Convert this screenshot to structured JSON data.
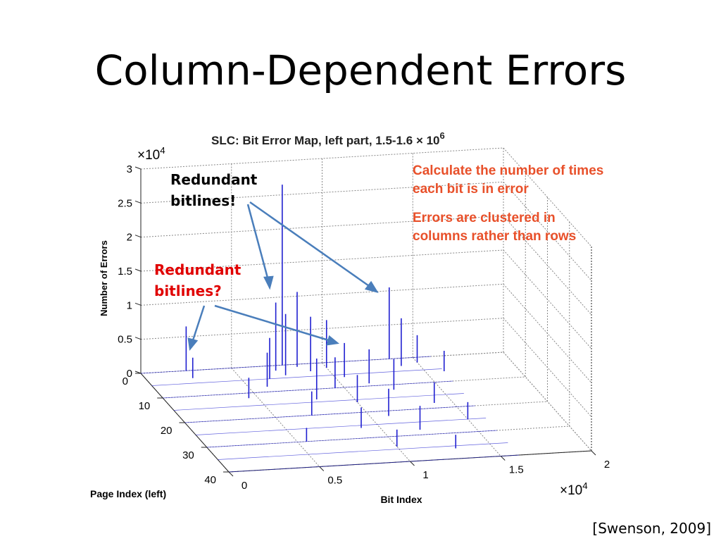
{
  "slide_title": "Column-Dependent Errors",
  "citation": "[Swenson, 2009]",
  "chart_data": {
    "type": "spike3d",
    "title": "SLC: Bit Error Map, left part, 1.5-1.6 × 10",
    "title_exponent": "6",
    "zlabel": "Number of Errors",
    "xlabel": "Bit Index",
    "ylabel": "Page Index (left)",
    "z_multiplier": "×10",
    "z_multiplier_exponent": "4",
    "x_multiplier": "×10",
    "x_multiplier_exponent": "4",
    "xlim": [
      0,
      2
    ],
    "xticks": [
      0,
      0.5,
      1,
      1.5,
      2
    ],
    "ylim": [
      0,
      40
    ],
    "yticks": [
      0,
      10,
      20,
      30,
      40
    ],
    "zlim": [
      0,
      3
    ],
    "zticks": [
      0,
      0.5,
      1,
      1.5,
      2,
      2.5,
      3
    ],
    "color": "#1f1fd0",
    "grid": true,
    "spikes": {
      "bit": [
        0.25,
        0.25,
        0.78,
        0.72,
        0.75,
        0.85,
        0.9,
        1.0,
        1.05,
        1.37,
        1.4,
        1.5,
        0.6,
        0.95,
        1.15,
        0.8,
        1.0,
        1.25,
        0.7,
        1.1,
        1.4,
        0.9,
        1.2,
        1.5,
        0.55,
        1.0,
        1.3,
        0.65,
        1.6,
        0.45
      ],
      "page": [
        0,
        3,
        0,
        2,
        4,
        1,
        3,
        2,
        6,
        0,
        3,
        2,
        8,
        10,
        9,
        14,
        16,
        12,
        20,
        22,
        18,
        26,
        28,
        25,
        30,
        34,
        36,
        5,
        6,
        12
      ],
      "errors": [
        0.65,
        0.3,
        2.65,
        1.0,
        0.9,
        1.1,
        0.8,
        0.7,
        0.5,
        1.05,
        0.7,
        0.4,
        0.5,
        0.45,
        0.5,
        0.6,
        0.4,
        0.45,
        0.35,
        0.4,
        0.3,
        0.3,
        0.35,
        0.25,
        0.2,
        0.25,
        0.2,
        0.6,
        0.3,
        0.3
      ]
    },
    "annotations": [
      {
        "lines": [
          "Redundant",
          "bitlines!"
        ],
        "color": "#000000"
      },
      {
        "lines": [
          "Redundant",
          "bitlines?"
        ],
        "color": "#e00000"
      }
    ],
    "notes": [
      [
        "Calculate the number of times",
        "each bit is in error"
      ],
      [
        "Errors are clustered in",
        "columns rather than rows"
      ]
    ],
    "notes_color": "#e8502a"
  }
}
